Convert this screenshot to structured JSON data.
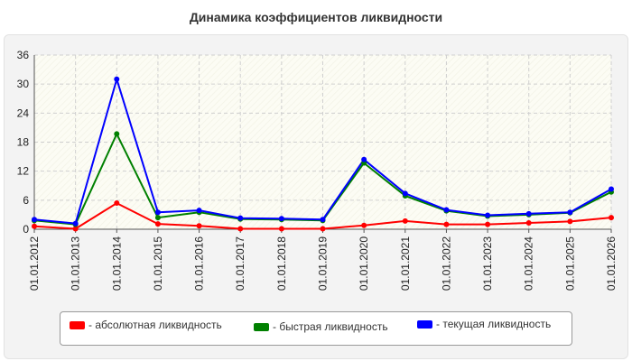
{
  "chart_data": {
    "type": "line",
    "title": "Динамика коэффициентов ликвидности",
    "xlabel": "",
    "ylabel": "",
    "categories": [
      "01.01.2012",
      "01.01.2013",
      "01.01.2014",
      "01.01.2015",
      "01.01.2016",
      "01.01.2017",
      "01.01.2018",
      "01.01.2019",
      "01.01.2020",
      "01.01.2021",
      "01.01.2022",
      "01.01.2023",
      "01.01.2024",
      "01.01.2025",
      "01.01.2026"
    ],
    "ylim": [
      0,
      36
    ],
    "yticks": [
      0,
      6,
      12,
      18,
      24,
      30,
      36
    ],
    "grid": true,
    "legend_position": "bottom",
    "series": [
      {
        "name": "- абсолютная ликвидность",
        "color": "#ff0000",
        "values": [
          0.6,
          0.1,
          5.4,
          1.1,
          0.7,
          0.1,
          0.1,
          0.1,
          0.8,
          1.7,
          1.0,
          1.0,
          1.3,
          1.6,
          2.4
        ]
      },
      {
        "name": "- быстрая ликвидность",
        "color": "#008000",
        "values": [
          1.8,
          1.0,
          19.7,
          2.4,
          3.5,
          2.1,
          2.0,
          1.8,
          13.7,
          6.9,
          3.8,
          2.7,
          3.0,
          3.4,
          7.7
        ]
      },
      {
        "name": "- текущая ликвидность",
        "color": "#0000ff",
        "values": [
          2.0,
          1.2,
          31.0,
          3.5,
          3.9,
          2.3,
          2.2,
          2.0,
          14.4,
          7.4,
          4.0,
          2.9,
          3.2,
          3.5,
          8.3
        ]
      }
    ]
  }
}
